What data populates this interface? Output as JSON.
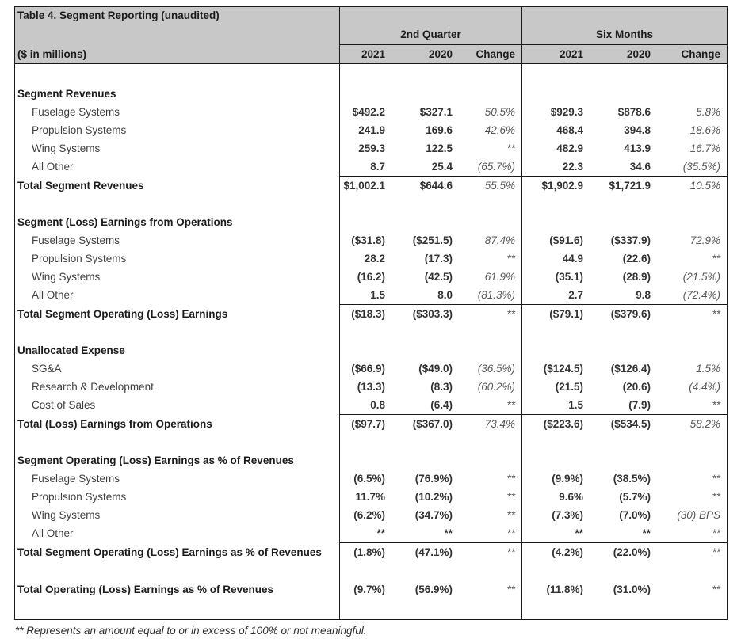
{
  "table": {
    "title": "Table 4. Segment Reporting (unaudited)",
    "units_label": "($ in millions)",
    "col_groups": [
      {
        "label": "2nd Quarter"
      },
      {
        "label": "Six Months"
      }
    ],
    "col_headers": [
      "2021",
      "2020",
      "Change"
    ],
    "sections": [
      {
        "header": "Segment Revenues",
        "items": [
          {
            "label": "Fuselage Systems",
            "q": [
              "$492.2",
              "$327.1",
              "50.5%"
            ],
            "s": [
              "$929.3",
              "$878.6",
              "5.8%"
            ]
          },
          {
            "label": "Propulsion Systems",
            "q": [
              "241.9",
              "169.6",
              "42.6%"
            ],
            "s": [
              "468.4",
              "394.8",
              "18.6%"
            ]
          },
          {
            "label": "Wing Systems",
            "q": [
              "259.3",
              "122.5",
              "**"
            ],
            "s": [
              "482.9",
              "413.9",
              "16.7%"
            ]
          },
          {
            "label": "All Other",
            "q": [
              "8.7",
              "25.4",
              "(65.7%)"
            ],
            "s": [
              "22.3",
              "34.6",
              "(35.5%)"
            ]
          }
        ],
        "total": {
          "label": "Total Segment Revenues",
          "q": [
            "$1,002.1",
            "$644.6",
            "55.5%"
          ],
          "s": [
            "$1,902.9",
            "$1,721.9",
            "10.5%"
          ],
          "rule": true
        }
      },
      {
        "header": "Segment (Loss) Earnings from Operations",
        "items": [
          {
            "label": "Fuselage Systems",
            "q": [
              "($31.8)",
              "($251.5)",
              "87.4%"
            ],
            "s": [
              "($91.6)",
              "($337.9)",
              "72.9%"
            ]
          },
          {
            "label": "Propulsion Systems",
            "q": [
              "28.2",
              "(17.3)",
              "**"
            ],
            "s": [
              "44.9",
              "(22.6)",
              "**"
            ]
          },
          {
            "label": "Wing Systems",
            "q": [
              "(16.2)",
              "(42.5)",
              "61.9%"
            ],
            "s": [
              "(35.1)",
              "(28.9)",
              "(21.5%)"
            ]
          },
          {
            "label": "All Other",
            "q": [
              "1.5",
              "8.0",
              "(81.3%)"
            ],
            "s": [
              "2.7",
              "9.8",
              "(72.4%)"
            ]
          }
        ],
        "total": {
          "label": "Total Segment Operating (Loss) Earnings",
          "q": [
            "($18.3)",
            "($303.3)",
            "**"
          ],
          "s": [
            "($79.1)",
            "($379.6)",
            "**"
          ],
          "rule": true
        }
      },
      {
        "header": "Unallocated Expense",
        "items": [
          {
            "label": "SG&A",
            "q": [
              "($66.9)",
              "($49.0)",
              "(36.5%)"
            ],
            "s": [
              "($124.5)",
              "($126.4)",
              "1.5%"
            ]
          },
          {
            "label": "Research & Development",
            "q": [
              "(13.3)",
              "(8.3)",
              "(60.2%)"
            ],
            "s": [
              "(21.5)",
              "(20.6)",
              "(4.4%)"
            ]
          },
          {
            "label": "Cost of Sales",
            "q": [
              "0.8",
              "(6.4)",
              "**"
            ],
            "s": [
              "1.5",
              "(7.9)",
              "**"
            ]
          }
        ],
        "total": {
          "label": "Total (Loss) Earnings from Operations",
          "q": [
            "($97.7)",
            "($367.0)",
            "73.4%"
          ],
          "s": [
            "($223.6)",
            "($534.5)",
            "58.2%"
          ],
          "rule": true
        }
      },
      {
        "header": "Segment Operating (Loss) Earnings as % of Revenues",
        "items": [
          {
            "label": "Fuselage Systems",
            "q": [
              "(6.5%)",
              "(76.9%)",
              "**"
            ],
            "s": [
              "(9.9%)",
              "(38.5%)",
              "**"
            ]
          },
          {
            "label": "Propulsion Systems",
            "q": [
              "11.7%",
              "(10.2%)",
              "**"
            ],
            "s": [
              "9.6%",
              "(5.7%)",
              "**"
            ]
          },
          {
            "label": "Wing Systems",
            "q": [
              "(6.2%)",
              "(34.7%)",
              "**"
            ],
            "s": [
              "(7.3%)",
              "(7.0%)",
              "(30) BPS"
            ]
          },
          {
            "label": "All Other",
            "q": [
              "**",
              "**",
              "**"
            ],
            "s": [
              "**",
              "**",
              "**"
            ]
          }
        ],
        "total": {
          "label": "Total Segment Operating (Loss) Earnings as % of Revenues",
          "q": [
            "(1.8%)",
            "(47.1%)",
            "**"
          ],
          "s": [
            "(4.2%)",
            "(22.0%)",
            "**"
          ],
          "rule": true
        }
      },
      {
        "header": null,
        "items": [],
        "total": {
          "label": "Total Operating (Loss) Earnings as % of Revenues",
          "q": [
            "(9.7%)",
            "(56.9%)",
            "**"
          ],
          "s": [
            "(11.8%)",
            "(31.0%)",
            "**"
          ],
          "rule": false
        }
      }
    ],
    "footnote": "** Represents an amount equal to or in excess of 100% or not meaningful."
  }
}
